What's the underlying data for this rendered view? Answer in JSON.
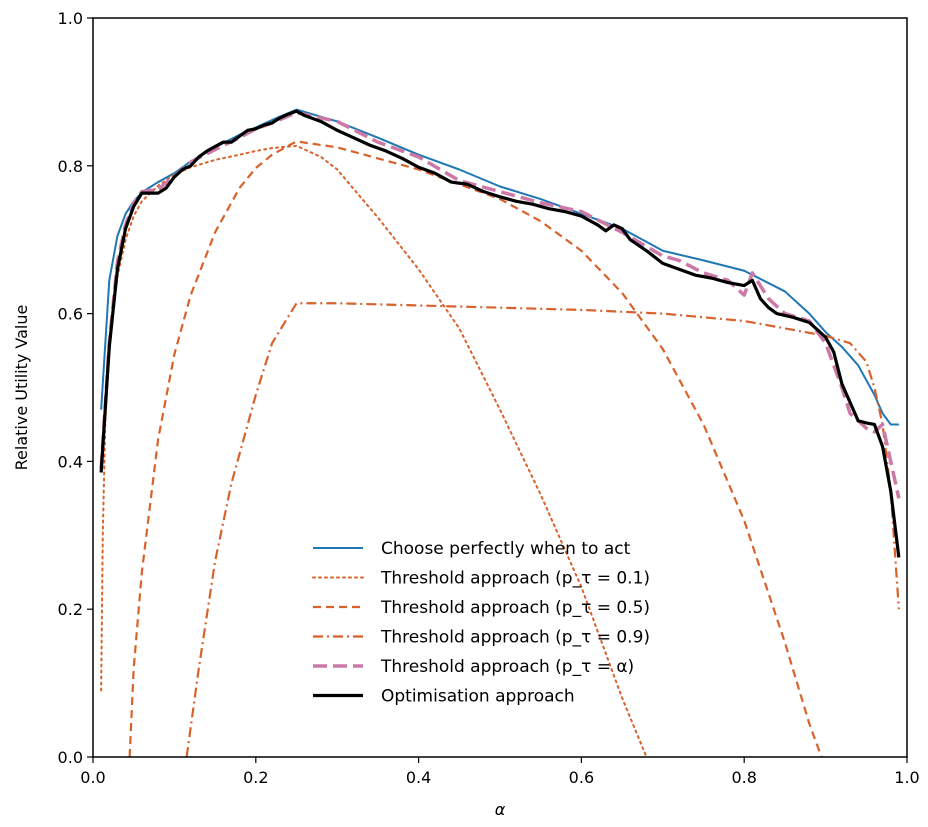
{
  "chart_data": {
    "type": "line",
    "title": "",
    "xlabel": "α",
    "ylabel": "Relative Utility Value",
    "xlim": [
      0.0,
      1.0
    ],
    "ylim": [
      0.0,
      1.0
    ],
    "xticks": [
      "0.0",
      "0.2",
      "0.4",
      "0.6",
      "0.8",
      "1.0"
    ],
    "yticks": [
      "0.0",
      "0.2",
      "0.4",
      "0.6",
      "0.8",
      "1.0"
    ],
    "grid": false,
    "legend_position": "lower-center",
    "series": [
      {
        "name": "Choose perfectly when to act",
        "color": "#1f77b4",
        "style": "solid",
        "x": [
          0.01,
          0.02,
          0.03,
          0.04,
          0.05,
          0.06,
          0.08,
          0.1,
          0.12,
          0.15,
          0.18,
          0.2,
          0.22,
          0.25,
          0.3,
          0.35,
          0.4,
          0.45,
          0.5,
          0.55,
          0.6,
          0.65,
          0.7,
          0.75,
          0.8,
          0.85,
          0.88,
          0.9,
          0.92,
          0.94,
          0.96,
          0.97,
          0.98,
          0.99
        ],
        "y": [
          0.47,
          0.645,
          0.705,
          0.735,
          0.752,
          0.764,
          0.778,
          0.79,
          0.806,
          0.825,
          0.842,
          0.852,
          0.862,
          0.876,
          0.86,
          0.838,
          0.815,
          0.795,
          0.772,
          0.755,
          0.735,
          0.715,
          0.685,
          0.672,
          0.658,
          0.63,
          0.6,
          0.575,
          0.555,
          0.53,
          0.49,
          0.465,
          0.45,
          0.45
        ]
      },
      {
        "name": "Threshold approach (p_τ = 0.1)",
        "color": "#d9622b",
        "style": "dotted",
        "x": [
          0.01,
          0.012,
          0.015,
          0.02,
          0.03,
          0.04,
          0.05,
          0.06,
          0.08,
          0.1,
          0.12,
          0.15,
          0.18,
          0.2,
          0.22,
          0.25,
          0.28,
          0.3,
          0.35,
          0.4,
          0.45,
          0.5,
          0.55,
          0.6,
          0.65,
          0.68
        ],
        "y": [
          0.09,
          0.3,
          0.45,
          0.56,
          0.65,
          0.7,
          0.732,
          0.752,
          0.773,
          0.788,
          0.798,
          0.808,
          0.815,
          0.82,
          0.824,
          0.827,
          0.812,
          0.795,
          0.73,
          0.66,
          0.58,
          0.47,
          0.355,
          0.23,
          0.08,
          0.0
        ]
      },
      {
        "name": "Threshold approach (p_τ = 0.5)",
        "color": "#d9622b",
        "style": "dashed",
        "x": [
          0.045,
          0.05,
          0.06,
          0.08,
          0.1,
          0.12,
          0.15,
          0.18,
          0.2,
          0.22,
          0.25,
          0.3,
          0.35,
          0.4,
          0.45,
          0.5,
          0.55,
          0.6,
          0.65,
          0.7,
          0.75,
          0.8,
          0.85,
          0.88,
          0.895
        ],
        "y": [
          0.0,
          0.12,
          0.25,
          0.43,
          0.545,
          0.625,
          0.71,
          0.77,
          0.797,
          0.815,
          0.833,
          0.825,
          0.81,
          0.795,
          0.775,
          0.755,
          0.725,
          0.685,
          0.628,
          0.552,
          0.45,
          0.32,
          0.155,
          0.045,
          0.0
        ]
      },
      {
        "name": "Threshold approach (p_τ = 0.9)",
        "color": "#d9622b",
        "style": "dashdot",
        "x": [
          0.115,
          0.12,
          0.13,
          0.15,
          0.17,
          0.2,
          0.22,
          0.25,
          0.3,
          0.4,
          0.5,
          0.6,
          0.7,
          0.8,
          0.85,
          0.9,
          0.93,
          0.95,
          0.96,
          0.97,
          0.98,
          0.99
        ],
        "y": [
          0.0,
          0.04,
          0.12,
          0.265,
          0.37,
          0.49,
          0.56,
          0.614,
          0.614,
          0.611,
          0.608,
          0.605,
          0.6,
          0.59,
          0.58,
          0.57,
          0.56,
          0.535,
          0.5,
          0.45,
          0.36,
          0.2
        ]
      },
      {
        "name": "Threshold approach (p_τ = α)",
        "color": "#cc79a7",
        "style": "longdash",
        "x": [
          0.01,
          0.02,
          0.03,
          0.04,
          0.05,
          0.06,
          0.08,
          0.1,
          0.12,
          0.15,
          0.18,
          0.2,
          0.22,
          0.25,
          0.3,
          0.35,
          0.4,
          0.45,
          0.5,
          0.55,
          0.6,
          0.65,
          0.7,
          0.72,
          0.75,
          0.78,
          0.8,
          0.81,
          0.83,
          0.85,
          0.88,
          0.9,
          0.92,
          0.93,
          0.95,
          0.96,
          0.97,
          0.98,
          0.99
        ],
        "y": [
          0.39,
          0.56,
          0.67,
          0.72,
          0.75,
          0.765,
          0.768,
          0.786,
          0.805,
          0.822,
          0.838,
          0.85,
          0.858,
          0.872,
          0.86,
          0.832,
          0.812,
          0.78,
          0.765,
          0.75,
          0.738,
          0.71,
          0.678,
          0.672,
          0.655,
          0.645,
          0.625,
          0.655,
          0.62,
          0.6,
          0.59,
          0.56,
          0.5,
          0.465,
          0.445,
          0.44,
          0.45,
          0.4,
          0.35
        ]
      },
      {
        "name": "Optimisation approach",
        "color": "#000000",
        "style": "solid-thick",
        "x": [
          0.01,
          0.02,
          0.03,
          0.04,
          0.05,
          0.06,
          0.07,
          0.08,
          0.09,
          0.1,
          0.11,
          0.12,
          0.13,
          0.14,
          0.15,
          0.16,
          0.17,
          0.18,
          0.19,
          0.2,
          0.21,
          0.22,
          0.23,
          0.24,
          0.25,
          0.26,
          0.27,
          0.28,
          0.3,
          0.32,
          0.34,
          0.36,
          0.38,
          0.4,
          0.42,
          0.44,
          0.46,
          0.48,
          0.5,
          0.52,
          0.54,
          0.56,
          0.58,
          0.6,
          0.62,
          0.63,
          0.64,
          0.65,
          0.66,
          0.68,
          0.7,
          0.72,
          0.74,
          0.76,
          0.78,
          0.8,
          0.81,
          0.82,
          0.83,
          0.84,
          0.86,
          0.88,
          0.9,
          0.91,
          0.92,
          0.93,
          0.94,
          0.95,
          0.96,
          0.97,
          0.98,
          0.99
        ],
        "y": [
          0.385,
          0.555,
          0.66,
          0.715,
          0.745,
          0.763,
          0.763,
          0.763,
          0.77,
          0.785,
          0.795,
          0.8,
          0.812,
          0.82,
          0.826,
          0.832,
          0.832,
          0.84,
          0.848,
          0.85,
          0.855,
          0.858,
          0.865,
          0.87,
          0.874,
          0.868,
          0.864,
          0.86,
          0.848,
          0.838,
          0.828,
          0.82,
          0.81,
          0.798,
          0.79,
          0.778,
          0.775,
          0.765,
          0.758,
          0.752,
          0.748,
          0.742,
          0.738,
          0.732,
          0.72,
          0.712,
          0.72,
          0.715,
          0.7,
          0.685,
          0.668,
          0.66,
          0.652,
          0.648,
          0.642,
          0.638,
          0.645,
          0.62,
          0.608,
          0.6,
          0.595,
          0.588,
          0.568,
          0.548,
          0.505,
          0.48,
          0.455,
          0.452,
          0.45,
          0.42,
          0.36,
          0.27
        ]
      }
    ]
  }
}
